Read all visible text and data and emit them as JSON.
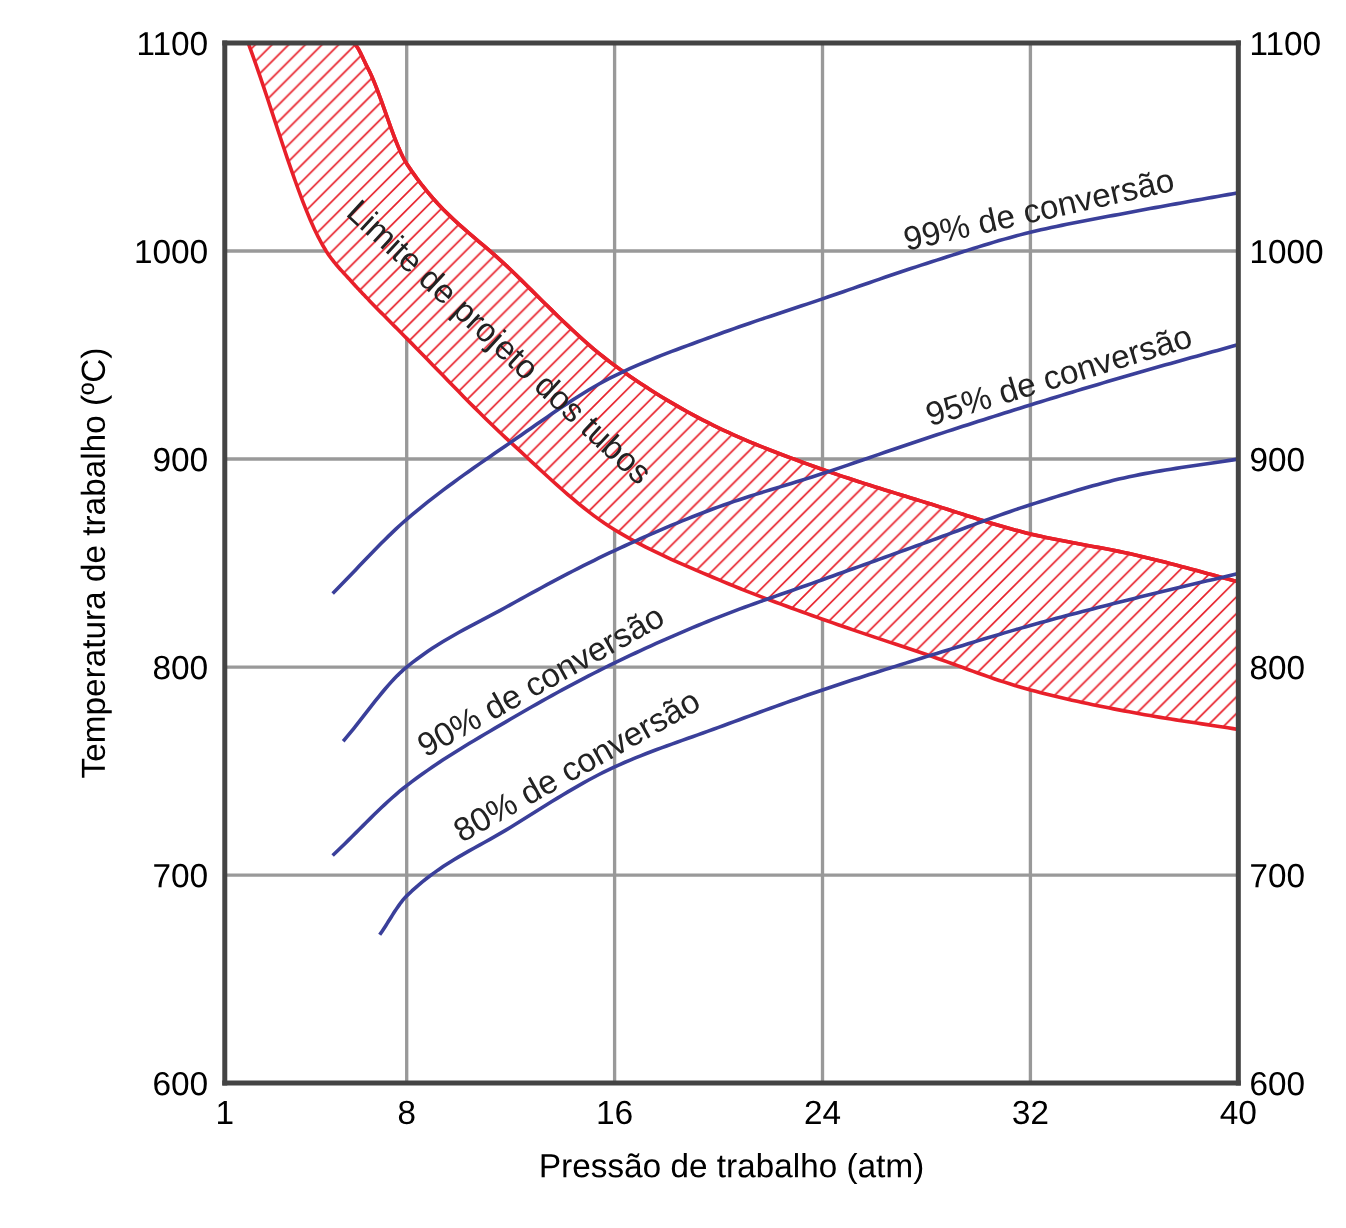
{
  "chart_data": {
    "type": "line",
    "xlabel": "Pressão de trabalho (atm)",
    "ylabel": "Temperatura de trabalho (ºC)",
    "xlim": [
      1,
      40
    ],
    "xticks": [
      1,
      8,
      16,
      24,
      32,
      40
    ],
    "ylim": [
      600,
      1100
    ],
    "yticks": [
      600,
      700,
      800,
      900,
      1000,
      1100
    ],
    "y2lim": [
      600,
      1100
    ],
    "y2ticks": [
      600,
      700,
      800,
      900,
      1000,
      1100
    ],
    "grid": true,
    "legend": false,
    "marker": "none",
    "line_style": "solid",
    "series": [
      {
        "type": "line",
        "color": "#e8202a",
        "x": [
          1.9,
          4.9,
          5.9,
          6.5,
          8,
          12,
          16,
          20,
          24,
          28,
          32,
          36,
          40
        ],
        "values": [
          1100,
          1100,
          1100,
          1088,
          1042,
          991,
          945,
          915,
          895,
          879,
          864,
          854,
          841
        ],
        "upper": [
          1100,
          1100,
          1100,
          1088,
          1042,
          991,
          945,
          915,
          895,
          879,
          864,
          854,
          841
        ],
        "lower": [
          1100,
          1000,
          985,
          977,
          958,
          908,
          866,
          842,
          823,
          806,
          789,
          778,
          770
        ]
      },
      {
        "name": "99% de conversão",
        "color": "#3a3f9a",
        "x": [
          5.2,
          8,
          12,
          16,
          20,
          24,
          28,
          32,
          36,
          40
        ],
        "values": [
          836,
          871,
          908,
          940,
          960,
          977,
          994,
          1009,
          1019,
          1028
        ]
      },
      {
        "name": "95% de conversão",
        "color": "#3a3f9a",
        "x": [
          5.6,
          8,
          12,
          16,
          20,
          24,
          28,
          32,
          36,
          40
        ],
        "values": [
          765,
          800,
          830,
          856,
          877,
          893,
          910,
          926,
          941,
          955
        ]
      },
      {
        "name": "90% de conversão",
        "color": "#3a3f9a",
        "x": [
          5.2,
          8,
          12,
          16,
          20,
          24,
          28,
          32,
          36,
          40
        ],
        "values": [
          710,
          743,
          775,
          802,
          824,
          842,
          860,
          878,
          892,
          900
        ]
      },
      {
        "name": "80% de conversão",
        "color": "#3a3f9a",
        "x": [
          7.0,
          8,
          12,
          16,
          20,
          24,
          28,
          32,
          36,
          40
        ],
        "values": [
          672,
          690,
          723,
          752,
          771,
          789,
          805,
          820,
          833,
          845
        ]
      }
    ],
    "annotations": [
      "Limite de projeto dos tubos"
    ]
  }
}
